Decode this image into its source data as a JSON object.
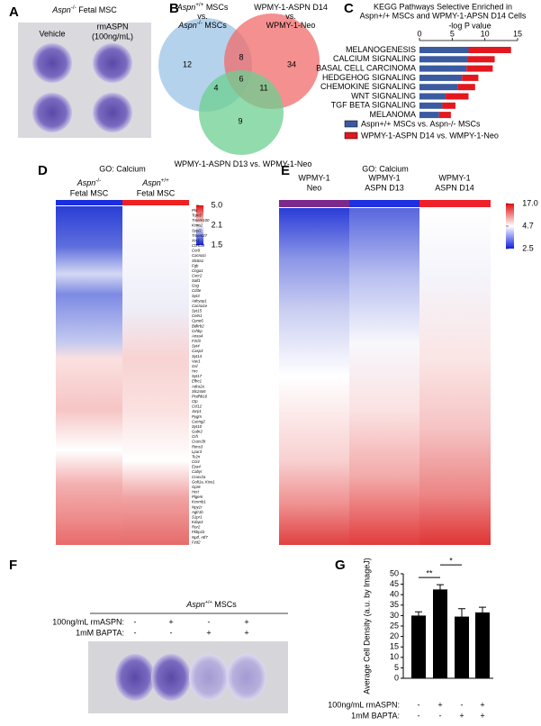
{
  "panel_labels": [
    "A",
    "B",
    "C",
    "D",
    "E",
    "F",
    "G"
  ],
  "panel_a": {
    "title": [
      "Aspn",
      "-/-",
      " Fetal MSC"
    ],
    "labels": [
      "Vehicle",
      "rmASPN",
      "(100ng/mL)"
    ]
  },
  "panel_b": {
    "sets": [
      {
        "lines": [
          [
            "Aspn",
            "+/+",
            " MSCs"
          ],
          [
            "vs."
          ],
          [
            "Aspn",
            "-/-",
            " MSCs"
          ]
        ]
      },
      {
        "lines": [
          [
            "WPMY-1-ASPN D14"
          ],
          [
            "vs."
          ],
          [
            "WPMY-1-Neo"
          ]
        ]
      },
      {
        "lines": [
          [
            "WPMY-1-ASPN D13 vs. WPMY-1-Neo"
          ]
        ]
      }
    ],
    "regions": [
      12,
      8,
      34,
      4,
      6,
      11,
      9
    ]
  },
  "heatmaps": [
    {
      "title": "GO: Calcium",
      "columns": [
        [
          "Aspn",
          "-/-",
          "Fetal MSC"
        ],
        [
          "Aspn",
          "+/+",
          "Fetal MSC"
        ]
      ],
      "colorbar": [
        {
          "value": 5,
          "label": "5.0"
        },
        2.1,
        1.5
      ],
      "genes": [
        "Pln",
        "Trpv3",
        "Tmem100",
        "Kcna1",
        "Sypl2",
        "Tmem37",
        "Xcr1",
        "Chrna9",
        "Ccr8",
        "Cacna1i",
        "Slc8a1",
        "Fgb",
        "Cnga1",
        "Cxcr2",
        "Sall1",
        "Gsg",
        "Cd3e",
        "Syt3",
        "Adcyap1",
        "Cacna1e",
        "Syt15",
        "Cetn1",
        "Cpne6",
        "Bdkrb2",
        "Crhbp",
        "Anxa4",
        "F2rl3",
        "Syt4",
        "Casp3",
        "Syt14",
        "Vav1",
        "Gsl",
        "Hrc",
        "Syt17",
        "Efhc1",
        "Adra2a",
        "Slc24a5",
        "Pcdhb16",
        "Ctp",
        "Ccl12",
        "Jarp1",
        "Pygm",
        "Cacng2",
        "Syt10",
        "Gabr2",
        "Crh",
        "Cracr2b",
        "Rims3",
        "Lpar3",
        "Tc2n",
        "Ccl4",
        "Eya4",
        "Cabyr",
        "Cracr2a",
        "Golt1a, Kiss1",
        "Gpr6",
        "Hcrt",
        "Plgem",
        "Kcnmb1",
        "Npy1r",
        "Agtr1b",
        "S1pr1",
        "Kdap3",
        "Ror2",
        "Fkbp1b",
        "Nptf, Atf7",
        "Fzd2"
      ]
    },
    {
      "title": "GO: Calcium",
      "columns": [
        [
          "WPMY-1",
          "Neo"
        ],
        [
          "WPMY-1",
          "ASPN D13"
        ],
        [
          "WPMY-1",
          "ASPN D14"
        ]
      ],
      "colorbar": [
        {
          "value": 17,
          "label": "17.0"
        },
        4.7,
        2.5
      ]
    }
  ],
  "panel_f": {
    "title": [
      "Aspn",
      "+/+",
      " MSCs"
    ],
    "conditions": [
      {
        "label": "100ng/mL rmASPN:",
        "signs": [
          "-",
          "+",
          "-",
          "+"
        ]
      },
      {
        "label": "1mM BAPTA:",
        "signs": [
          "-",
          "-",
          "+",
          "+"
        ]
      }
    ]
  },
  "chart_data": [
    {
      "type": "hbar",
      "title": [
        "KEGG Pathways Selective Enriched in",
        "Aspn+/+ MSCs and WPMY-1-APSN D14 Cells"
      ],
      "x_label": "-log P value",
      "categories": [
        "MELANOGENESIS",
        "CALCIUM SIGNALING",
        "BASAL CELL CARCINOMA",
        "HEDGEHOG SIGNALING",
        "CHEMOKINE SIGNALING",
        "WNT SIGNALING",
        "TGF BETA SIGNALING",
        "MELANOMA"
      ],
      "stacked": true,
      "series": [
        {
          "name": "Aspn+/+ MSCs vs. Aspn-/- MSCs",
          "color": "#3a5ba0",
          "values": [
            7.5,
            7.3,
            7.2,
            6.5,
            5.8,
            4,
            3.5,
            3
          ]
        },
        {
          "name": "WPMY-1-ASPN D14 vs. WMPY-1-Neo",
          "color": "#e3171d",
          "values": [
            6.5,
            4.2,
            4,
            2.5,
            2.7,
            3.5,
            2,
            1.8
          ]
        }
      ],
      "xlim": [
        0,
        15
      ],
      "xticks": [
        0,
        5,
        10,
        15
      ]
    },
    {
      "type": "bar",
      "y_label": "Average Cell Density (a.u. by ImageJ)",
      "categories": [
        null,
        null,
        null,
        null
      ],
      "values": [
        30,
        42.5,
        29.5,
        31.5
      ],
      "errors": [
        1.8,
        2.3,
        3.8,
        2.5
      ],
      "color": "#000000",
      "ylim": [
        0,
        50
      ],
      "yticks": [
        0,
        5,
        10,
        15,
        20,
        25,
        30,
        35,
        40,
        45,
        50
      ],
      "significance": [
        {
          "label": "**",
          "between": [
            0,
            1
          ]
        },
        {
          "label": "*",
          "between": [
            1,
            2
          ]
        }
      ],
      "conditions": [
        {
          "label": "100ng/mL rmASPN:",
          "signs": [
            "-",
            "+",
            "-",
            "+"
          ]
        },
        {
          "label": "1mM BAPTA:",
          "signs": [
            "-",
            "-",
            "+",
            "+"
          ]
        }
      ]
    }
  ]
}
